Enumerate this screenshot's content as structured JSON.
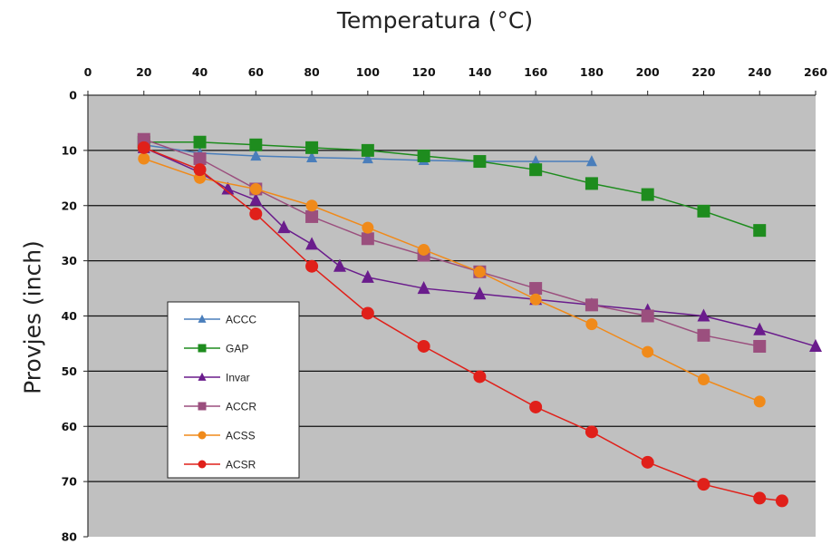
{
  "chart_data": {
    "type": "line",
    "title": "Temperatura (°C)",
    "xlabel": "",
    "ylabel": "Provjes (inch)",
    "xlim": [
      0,
      260
    ],
    "ylim": [
      0,
      80
    ],
    "y_inverted": true,
    "x_axis_position": "top",
    "grid": "horizontal",
    "plot_background": "#c0c0c0",
    "legend_position": "bottom-left",
    "x_ticks": [
      "0",
      "20",
      "40",
      "60",
      "80",
      "100",
      "120",
      "140",
      "160",
      "180",
      "200",
      "220",
      "240",
      "260"
    ],
    "y_ticks": [
      "0",
      "10",
      "20",
      "30",
      "40",
      "50",
      "60",
      "70",
      "80"
    ],
    "series": [
      {
        "name": "ACCC",
        "color": "#4a7ebb",
        "marker": "triangle",
        "x": [
          20,
          40,
          60,
          80,
          100,
          120,
          140,
          160,
          180
        ],
        "y": [
          9,
          10.5,
          11,
          11.3,
          11.5,
          11.8,
          12,
          12,
          12
        ]
      },
      {
        "name": "GAP",
        "color": "#1e8c1e",
        "marker": "square",
        "x": [
          20,
          40,
          60,
          80,
          100,
          120,
          140,
          160,
          180,
          200,
          220,
          240
        ],
        "y": [
          8.5,
          8.5,
          9,
          9.5,
          10,
          11,
          12,
          13.5,
          16,
          18,
          21,
          24.5
        ]
      },
      {
        "name": "Invar",
        "color": "#6a1c8c",
        "marker": "triangle",
        "x": [
          20,
          40,
          50,
          60,
          70,
          80,
          90,
          100,
          120,
          140,
          160,
          180,
          200,
          220,
          240,
          260
        ],
        "y": [
          9.5,
          14,
          17,
          19,
          24,
          27,
          31,
          33,
          35,
          36,
          37,
          38,
          39,
          40,
          42.5,
          45.5
        ]
      },
      {
        "name": "ACCR",
        "color": "#9b4f7e",
        "marker": "square",
        "x": [
          20,
          40,
          60,
          80,
          100,
          120,
          140,
          160,
          180,
          200,
          220,
          240
        ],
        "y": [
          8,
          11.5,
          17,
          22,
          26,
          29,
          32,
          35,
          38,
          40,
          43.5,
          45.5
        ]
      },
      {
        "name": "ACSS",
        "color": "#f08a1a",
        "marker": "circle",
        "x": [
          20,
          40,
          60,
          80,
          100,
          120,
          140,
          160,
          180,
          200,
          220,
          240
        ],
        "y": [
          11.5,
          15,
          17,
          20,
          24,
          28,
          32,
          37,
          41.5,
          46.5,
          51.5,
          55.5
        ]
      },
      {
        "name": "ACSR",
        "color": "#e0201a",
        "marker": "circle",
        "x": [
          20,
          40,
          60,
          80,
          100,
          120,
          140,
          160,
          180,
          200,
          220,
          240,
          248
        ],
        "y": [
          9.5,
          13.5,
          21.5,
          31,
          39.5,
          45.5,
          51,
          56.5,
          61,
          66.5,
          70.5,
          73,
          73.5
        ]
      }
    ]
  }
}
